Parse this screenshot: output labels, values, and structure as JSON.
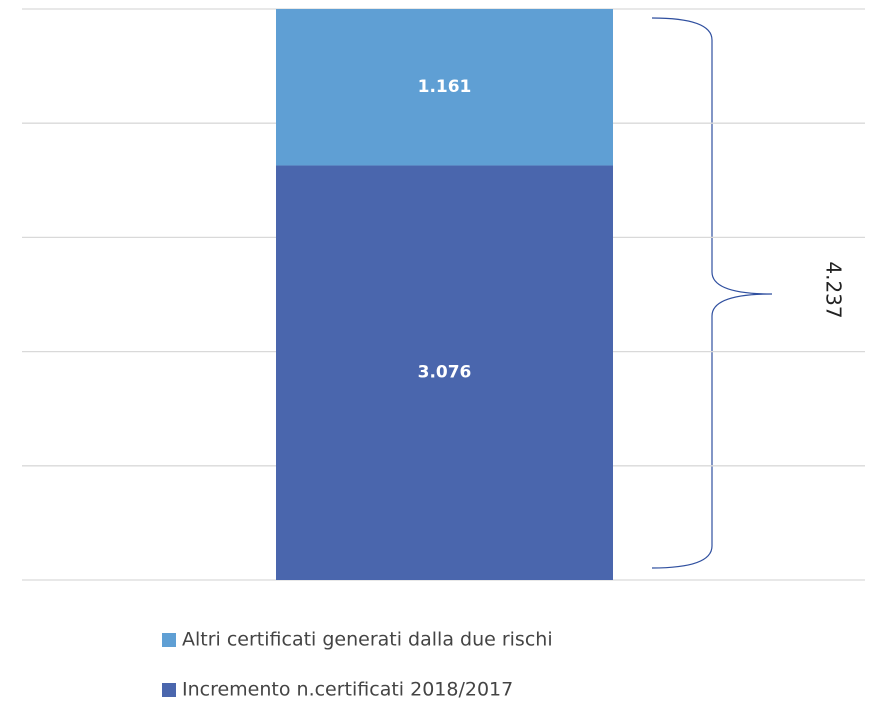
{
  "chart_data": {
    "type": "stacked_bar",
    "categories": [
      null
    ],
    "series": [
      {
        "name": "Incremento n.certificati 2018/2017",
        "color": "#4a66ad",
        "values": [
          3076
        ],
        "value_labels": [
          "3.076"
        ]
      },
      {
        "name": "Altri certificati generati dalla due rischi",
        "color": "#5f9fd4",
        "values": [
          1161
        ],
        "value_labels": [
          "1.161"
        ]
      }
    ],
    "ylim": [
      0,
      4237
    ],
    "yticks": [
      0,
      847.4,
      1694.8,
      2542.2,
      3389.6,
      4237
    ],
    "grid": true,
    "annotation": "4.237",
    "legend": "bottom"
  }
}
